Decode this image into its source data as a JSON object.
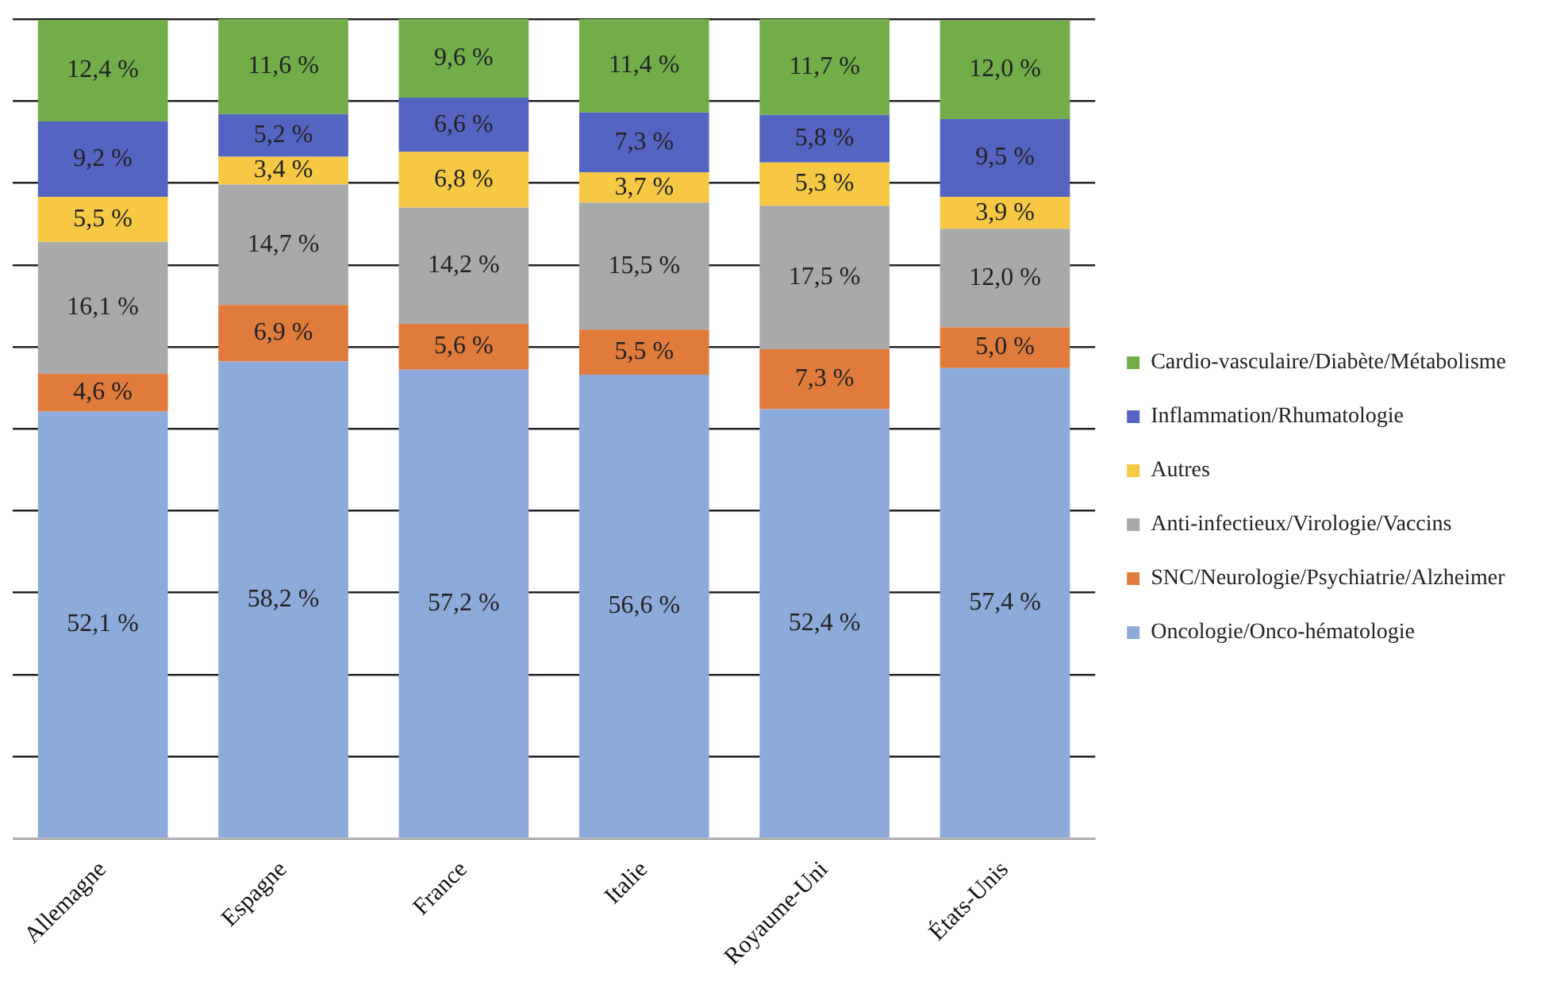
{
  "chart_data": {
    "type": "bar",
    "stacked": true,
    "categories": [
      "Allemagne",
      "Espagne",
      "France",
      "Italie",
      "Royaume-Uni",
      "États-Unis"
    ],
    "series": [
      {
        "name": "Oncologie/Onco-hématologie",
        "color": "#8eaadb",
        "values": [
          52.1,
          58.2,
          57.2,
          56.6,
          52.4,
          57.4
        ],
        "value_labels": [
          "52,1 %",
          "58,2 %",
          "57,2 %",
          "56,6 %",
          "52,4 %",
          "57,4 %"
        ]
      },
      {
        "name": "SNC/Neurologie/Psychiatrie/Alzheimer",
        "color": "#e07b3c",
        "values": [
          4.6,
          6.9,
          5.6,
          5.5,
          7.3,
          5.0
        ],
        "value_labels": [
          "4,6 %",
          "6,9 %",
          "5,6 %",
          "5,5 %",
          "7,3 %",
          "5,0 %"
        ]
      },
      {
        "name": "Anti-infectieux/Virologie/Vaccins",
        "color": "#a9a9a9",
        "values": [
          16.1,
          14.7,
          14.2,
          15.5,
          17.5,
          12.0
        ],
        "value_labels": [
          "16,1 %",
          "14,7 %",
          "14,2 %",
          "15,5 %",
          "17,5 %",
          "12,0 %"
        ]
      },
      {
        "name": "Autres",
        "color": "#f6c844",
        "values": [
          5.5,
          3.4,
          6.8,
          3.7,
          5.3,
          3.9
        ],
        "value_labels": [
          "5,5 %",
          "3,4 %",
          "6,8 %",
          "3,7 %",
          "5,3 %",
          "3,9 %"
        ]
      },
      {
        "name": "Inflammation/Rhumatologie",
        "color": "#5564c2",
        "values": [
          9.2,
          5.2,
          6.6,
          7.3,
          5.8,
          9.5
        ],
        "value_labels": [
          "9,2 %",
          "5,2 %",
          "6,6 %",
          "7,3 %",
          "5,8 %",
          "9,5 %"
        ]
      },
      {
        "name": "Cardio-vasculaire/Diabète/Métabolisme",
        "color": "#72ad4a",
        "values": [
          12.4,
          11.6,
          9.6,
          11.4,
          11.7,
          12.0
        ],
        "value_labels": [
          "12,4 %",
          "11,6 %",
          "9,6 %",
          "11,4 %",
          "11,7 %",
          "12,0 %"
        ]
      }
    ],
    "ylim": [
      0,
      100
    ],
    "yticks": [
      {
        "value": 0,
        "label": null
      },
      {
        "value": 10,
        "label": null
      },
      {
        "value": 20,
        "label": null
      },
      {
        "value": 30,
        "label": null
      },
      {
        "value": 40,
        "label": null
      },
      {
        "value": 50,
        "label": null
      },
      {
        "value": 60,
        "label": null
      },
      {
        "value": 70,
        "label": null
      },
      {
        "value": 80,
        "label": null
      },
      {
        "value": 90,
        "label": null
      },
      {
        "value": 100,
        "label": null
      }
    ],
    "tick_labels": "x",
    "grid": "y",
    "legend": "right"
  }
}
